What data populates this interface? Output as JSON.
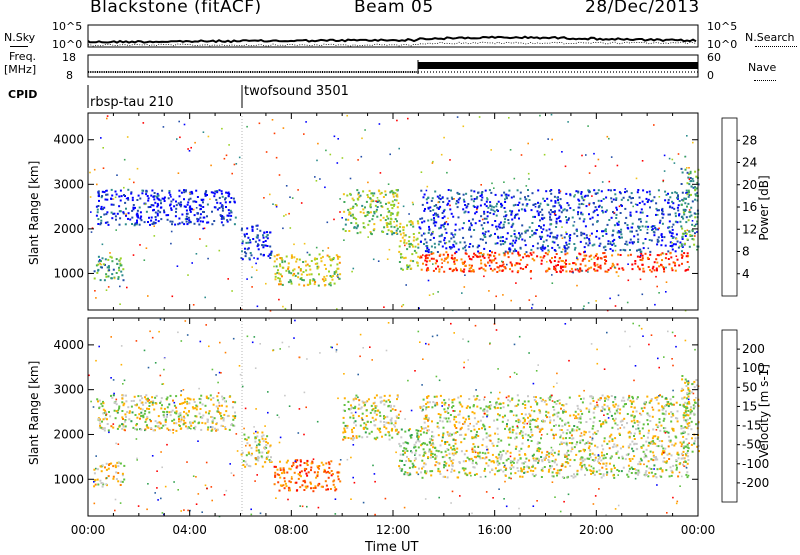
{
  "header": {
    "station": "Blackstone (fitACF)",
    "beam": "Beam 05",
    "date": "28/Dec/2013"
  },
  "top_panels": {
    "nsky_label": "N.Sky",
    "nsky_ticks": [
      "10^5",
      "10^0"
    ],
    "nsearch_label": "N.Search",
    "nsearch_ticks": [
      "10^5",
      "10^0"
    ],
    "freq_label": "Freq.",
    "freq_unit": "[MHz]",
    "freq_ticks": [
      "18",
      "8"
    ],
    "nave_label": "Nave",
    "nave_ticks": [
      "60",
      "0"
    ],
    "cpid_label": "CPID",
    "cpid_segments": [
      {
        "name": "rbsp-tau 210",
        "start_h": 0,
        "end_h": 6
      },
      {
        "name": "twofsound 3501",
        "start_h": 6,
        "end_h": 24
      }
    ]
  },
  "chart_data": [
    {
      "type": "heatmap",
      "title": "Power",
      "xlabel": "",
      "ylabel": "Slant Range [km]",
      "xlim": [
        0,
        24
      ],
      "ylim": [
        180,
        4600
      ],
      "yticks": [
        1000,
        2000,
        3000,
        4000
      ],
      "colorbar_label": "Power [dB]",
      "colorbar_ticks": [
        "4",
        "8",
        "12",
        "16",
        "20",
        "24",
        "28"
      ],
      "colorbar_range": [
        0,
        32
      ],
      "colors": [
        "#0000ff",
        "#224ca8",
        "#2c8c8c",
        "#3fa85a",
        "#9ad126",
        "#f2c21a",
        "#ff8c00",
        "#ff3c00",
        "#ff0000"
      ],
      "features": [
        {
          "h0": 0.2,
          "h1": 1.4,
          "r0": 850,
          "r1": 1400,
          "level": 0.35
        },
        {
          "h0": 0.3,
          "h1": 5.8,
          "r0": 2100,
          "r1": 2900,
          "level": 0.08
        },
        {
          "h0": 6.0,
          "h1": 7.2,
          "r0": 1300,
          "r1": 2100,
          "level": 0.1
        },
        {
          "h0": 7.3,
          "h1": 9.9,
          "r0": 750,
          "r1": 1450,
          "level": 0.55
        },
        {
          "h0": 10.0,
          "h1": 12.2,
          "r0": 1900,
          "r1": 2900,
          "level": 0.45
        },
        {
          "h0": 12.2,
          "h1": 13.0,
          "r0": 1100,
          "r1": 2200,
          "level": 0.5
        },
        {
          "h0": 13.0,
          "h1": 23.6,
          "r0": 1050,
          "r1": 1500,
          "level": 0.85
        },
        {
          "h0": 13.0,
          "h1": 23.6,
          "r0": 1500,
          "r1": 2900,
          "level": 0.15
        },
        {
          "h0": 23.3,
          "h1": 24.0,
          "r0": 1600,
          "r1": 3400,
          "level": 0.35
        }
      ]
    },
    {
      "type": "heatmap",
      "title": "Velocity",
      "xlabel": "Time UT",
      "ylabel": "Slant Range [km]",
      "xlim": [
        0,
        24
      ],
      "ylim": [
        180,
        4600
      ],
      "xticks": [
        "00:00",
        "04:00",
        "08:00",
        "12:00",
        "16:00",
        "20:00",
        "00:00"
      ],
      "yticks": [
        1000,
        2000,
        3000,
        4000
      ],
      "colorbar_label": "Velocity [m s-1]",
      "colorbar_ticks": [
        "-200",
        "-100",
        "-50",
        "-15",
        "15",
        "50",
        "100",
        "200"
      ],
      "colors": [
        "#ff0000",
        "#ff4000",
        "#ff8000",
        "#ffb000",
        "#c8c8c8",
        "#60c040",
        "#30a050",
        "#2a60a0",
        "#0000ff"
      ],
      "features": [
        {
          "h0": 0.2,
          "h1": 1.4,
          "r0": 850,
          "r1": 1400,
          "level": 0.45
        },
        {
          "h0": 0.3,
          "h1": 5.8,
          "r0": 2100,
          "r1": 2900,
          "level": 0.5
        },
        {
          "h0": 6.0,
          "h1": 7.2,
          "r0": 1300,
          "r1": 2100,
          "level": 0.5
        },
        {
          "h0": 7.3,
          "h1": 9.9,
          "r0": 750,
          "r1": 1450,
          "level": 0.25
        },
        {
          "h0": 10.0,
          "h1": 12.2,
          "r0": 1900,
          "r1": 2900,
          "level": 0.5
        },
        {
          "h0": 12.2,
          "h1": 13.0,
          "r0": 1100,
          "r1": 2200,
          "level": 0.6
        },
        {
          "h0": 13.0,
          "h1": 23.6,
          "r0": 1050,
          "r1": 1600,
          "level": 0.5
        },
        {
          "h0": 13.0,
          "h1": 23.6,
          "r0": 1600,
          "r1": 2900,
          "level": 0.5
        },
        {
          "h0": 23.3,
          "h1": 24.0,
          "r0": 1600,
          "r1": 3400,
          "level": 0.5
        }
      ]
    }
  ]
}
